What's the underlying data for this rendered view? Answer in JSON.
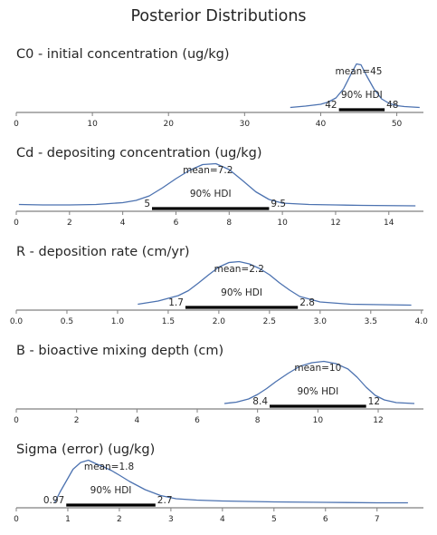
{
  "suptitle": "Posterior Distributions",
  "colors": {
    "kde": "#4c72b0",
    "hdi_bar": "#000000",
    "axis": "#808080",
    "text": "#262626"
  },
  "chart_data": [
    {
      "type": "area",
      "title": "C0 - initial concentration (ug/kg)",
      "xlim": [
        0,
        53.5
      ],
      "ticks": [
        0,
        10,
        20,
        30,
        40,
        50
      ],
      "tick_labels": [
        "0",
        "10",
        "20",
        "30",
        "40",
        "50"
      ],
      "mean": 45,
      "mean_label": "mean=45",
      "hdi": [
        42.4,
        48.4
      ],
      "hdi_text": "90% HDI",
      "hdi_low_label": "42",
      "hdi_high_label": "48",
      "kde_x": [
        36,
        38,
        40,
        41,
        42,
        43,
        44,
        44.7,
        45.3,
        46,
        47,
        48,
        49,
        50,
        51,
        53
      ],
      "kde_y": [
        0.01,
        0.04,
        0.08,
        0.13,
        0.22,
        0.42,
        0.75,
        0.97,
        0.95,
        0.72,
        0.42,
        0.2,
        0.1,
        0.05,
        0.03,
        0.01
      ]
    },
    {
      "type": "area",
      "title": "Cd - depositing concentration (ug/kg)",
      "xlim": [
        0,
        15.3
      ],
      "ticks": [
        0,
        2,
        4,
        6,
        8,
        10,
        12,
        14
      ],
      "tick_labels": [
        "0",
        "2",
        "4",
        "6",
        "8",
        "10",
        "12",
        "14"
      ],
      "mean": 7.2,
      "mean_label": "mean=7.2",
      "hdi": [
        5.1,
        9.5
      ],
      "hdi_text": "90% HDI",
      "hdi_low_label": "5",
      "hdi_high_label": "9.5",
      "kde_x": [
        0.1,
        1,
        2,
        3,
        4,
        4.5,
        5,
        5.5,
        6,
        6.5,
        7,
        7.5,
        8,
        8.5,
        9,
        9.5,
        10,
        11,
        12,
        13,
        15
      ],
      "kde_y": [
        0.05,
        0.04,
        0.04,
        0.05,
        0.09,
        0.14,
        0.24,
        0.42,
        0.62,
        0.8,
        0.93,
        0.95,
        0.82,
        0.58,
        0.33,
        0.16,
        0.08,
        0.05,
        0.04,
        0.03,
        0.02
      ]
    },
    {
      "type": "area",
      "title": "R - deposition rate (cm/yr)",
      "xlim": [
        0,
        4.02
      ],
      "ticks": [
        0.0,
        0.5,
        1.0,
        1.5,
        2.0,
        2.5,
        3.0,
        3.5,
        4.0
      ],
      "tick_labels": [
        "0.0",
        "0.5",
        "1.0",
        "1.5",
        "2.0",
        "2.5",
        "3.0",
        "3.5",
        "4.0"
      ],
      "mean": 2.2,
      "mean_label": "mean=2.2",
      "hdi": [
        1.67,
        2.78
      ],
      "hdi_text": "90% HDI",
      "hdi_low_label": "1.7",
      "hdi_high_label": "2.8",
      "kde_x": [
        1.2,
        1.4,
        1.6,
        1.7,
        1.8,
        1.9,
        2.0,
        2.1,
        2.2,
        2.3,
        2.4,
        2.5,
        2.6,
        2.7,
        2.8,
        3.0,
        3.3,
        3.6,
        3.9
      ],
      "kde_y": [
        0.03,
        0.1,
        0.22,
        0.33,
        0.5,
        0.68,
        0.85,
        0.95,
        0.97,
        0.92,
        0.82,
        0.68,
        0.5,
        0.34,
        0.2,
        0.08,
        0.03,
        0.02,
        0.01
      ]
    },
    {
      "type": "area",
      "title": "B - bioactive mixing depth (cm)",
      "xlim": [
        0,
        13.5
      ],
      "ticks": [
        0,
        2,
        4,
        6,
        8,
        10,
        12
      ],
      "tick_labels": [
        "0",
        "2",
        "4",
        "6",
        "8",
        "10",
        "12"
      ],
      "mean": 10,
      "mean_label": "mean=10",
      "hdi": [
        8.4,
        11.6
      ],
      "hdi_text": "90% HDI",
      "hdi_low_label": "8.4",
      "hdi_high_label": "12",
      "kde_x": [
        6.9,
        7.3,
        7.7,
        8.0,
        8.3,
        8.6,
        9.0,
        9.4,
        9.8,
        10.2,
        10.6,
        11.0,
        11.3,
        11.6,
        11.9,
        12.2,
        12.6,
        13.2
      ],
      "kde_y": [
        0.02,
        0.05,
        0.12,
        0.22,
        0.35,
        0.5,
        0.68,
        0.84,
        0.92,
        0.95,
        0.9,
        0.78,
        0.6,
        0.38,
        0.2,
        0.1,
        0.04,
        0.02
      ]
    },
    {
      "type": "area",
      "title": "Sigma (error) (ug/kg)",
      "xlim": [
        0,
        7.9
      ],
      "ticks": [
        0,
        1,
        2,
        3,
        4,
        5,
        6,
        7
      ],
      "tick_labels": [
        "0",
        "1",
        "2",
        "3",
        "4",
        "5",
        "6",
        "7"
      ],
      "mean": 1.8,
      "mean_label": "mean=1.8",
      "hdi": [
        0.97,
        2.7
      ],
      "hdi_text": "90% HDI",
      "hdi_low_label": "0.97",
      "hdi_high_label": "2.7",
      "kde_x": [
        0.75,
        0.85,
        1.0,
        1.1,
        1.25,
        1.4,
        1.55,
        1.7,
        1.85,
        2.0,
        2.2,
        2.5,
        2.8,
        3.1,
        3.5,
        4.0,
        4.5,
        5.0,
        6.0,
        7.0,
        7.6
      ],
      "kde_y": [
        0.02,
        0.25,
        0.55,
        0.75,
        0.9,
        0.95,
        0.87,
        0.8,
        0.72,
        0.62,
        0.48,
        0.3,
        0.17,
        0.1,
        0.07,
        0.05,
        0.04,
        0.03,
        0.02,
        0.01,
        0.01
      ]
    }
  ]
}
